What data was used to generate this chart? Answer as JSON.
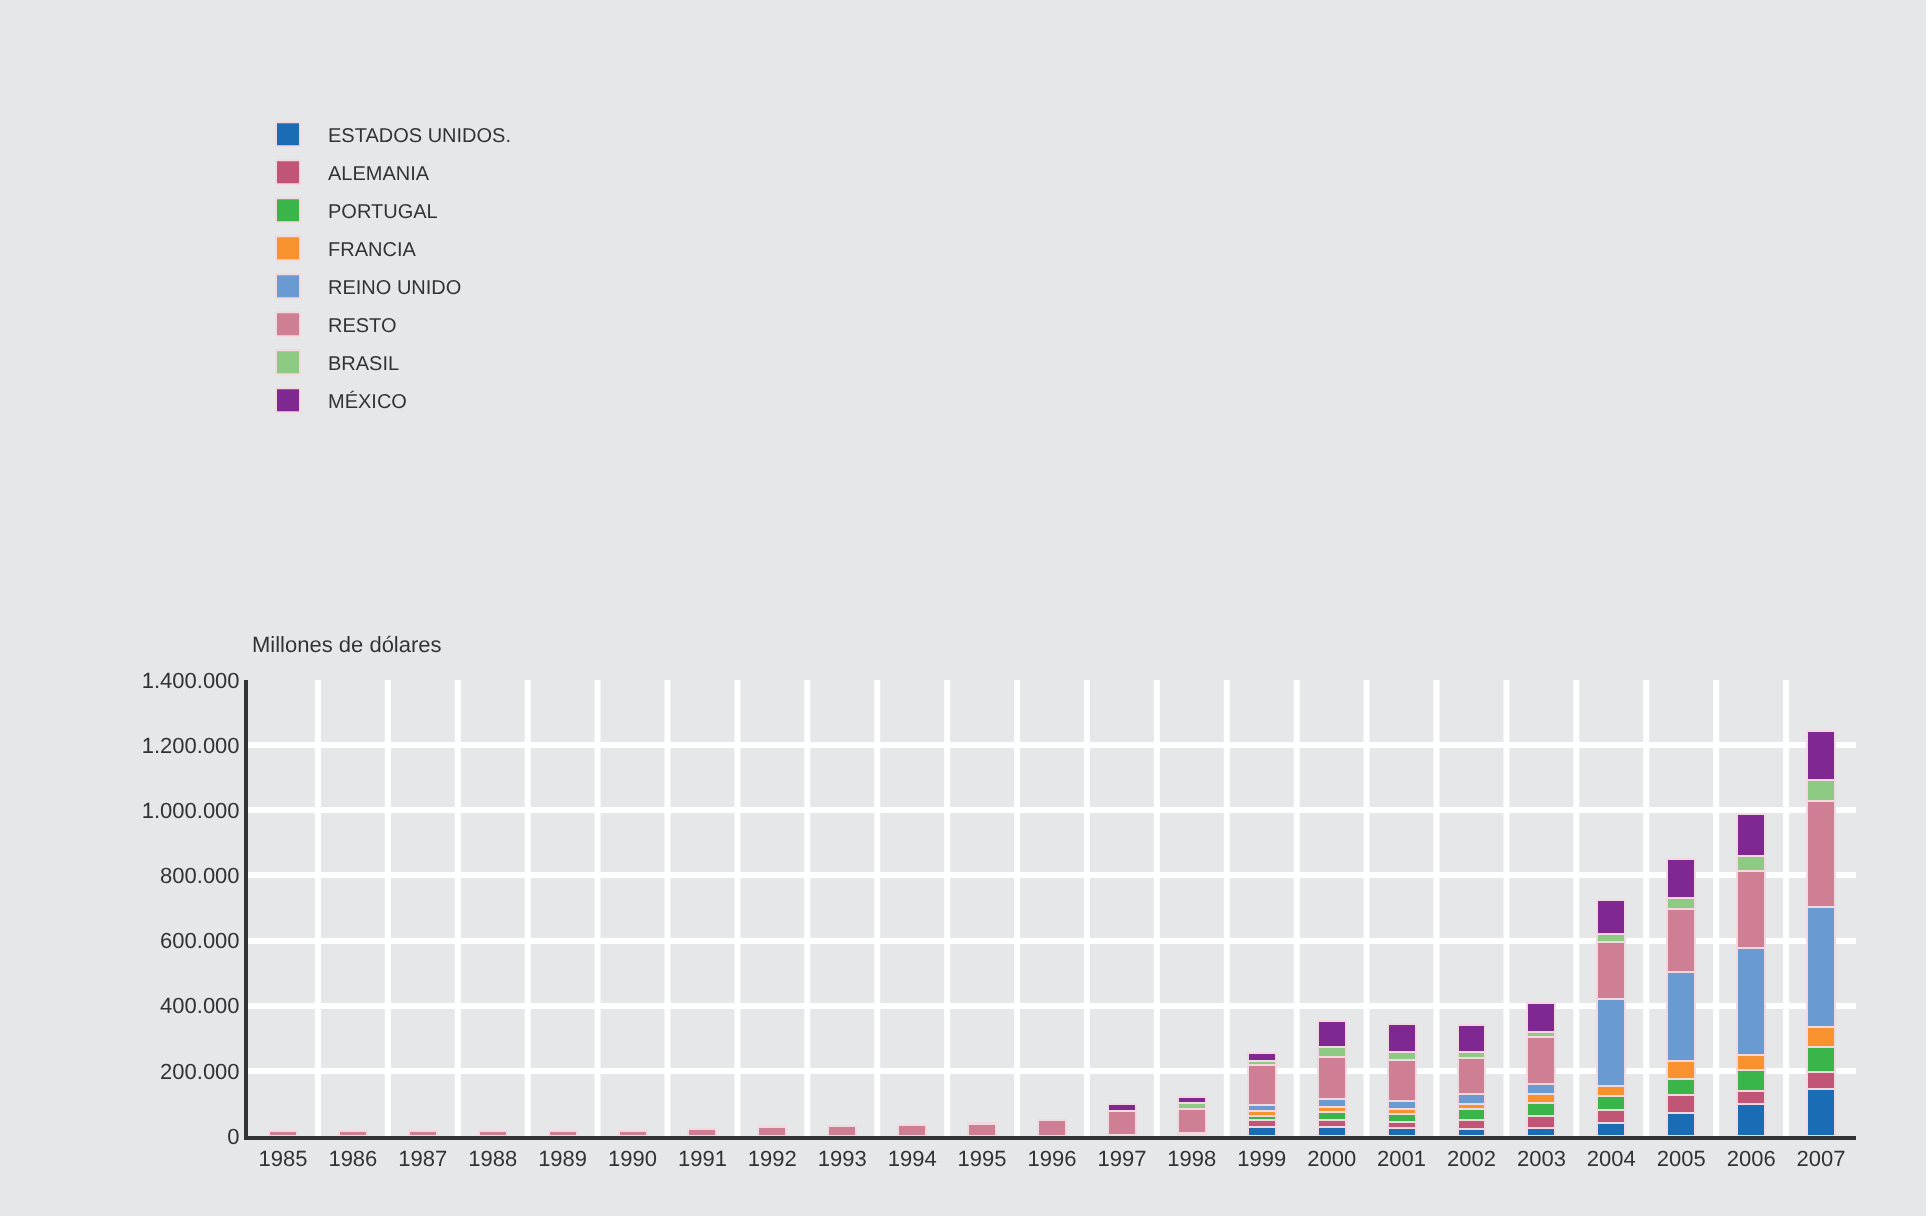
{
  "chart_data": {
    "type": "bar",
    "stacked": true,
    "ylabel": "Millones de dólares",
    "categories": [
      "1985",
      "1986",
      "1987",
      "1988",
      "1989",
      "1990",
      "1991",
      "1992",
      "1993",
      "1994",
      "1995",
      "1996",
      "1997",
      "1998",
      "1999",
      "2000",
      "2001",
      "2002",
      "2003",
      "2004",
      "2005",
      "2006",
      "2007"
    ],
    "series": [
      {
        "name": "ESTADOS UNIDOS.",
        "color": "#1a6db5",
        "values": [
          null,
          null,
          null,
          null,
          null,
          null,
          null,
          null,
          null,
          null,
          null,
          null,
          null,
          null,
          29000,
          29000,
          24000,
          20000,
          24000,
          39000,
          70000,
          98000,
          143000
        ]
      },
      {
        "name": "ALEMANIA",
        "color": "#c05575",
        "values": [
          null,
          null,
          null,
          null,
          null,
          null,
          null,
          null,
          null,
          null,
          null,
          null,
          null,
          3000,
          21000,
          20000,
          18000,
          29000,
          36000,
          41000,
          55000,
          41000,
          54000
        ]
      },
      {
        "name": "PORTUGAL",
        "color": "#39b54a",
        "values": [
          null,
          null,
          null,
          null,
          null,
          null,
          null,
          null,
          null,
          null,
          null,
          null,
          3000,
          5000,
          10000,
          24000,
          26000,
          33000,
          41000,
          42000,
          50000,
          63000,
          76000
        ]
      },
      {
        "name": "FRANCIA",
        "color": "#f7922e",
        "values": [
          null,
          null,
          null,
          null,
          null,
          null,
          null,
          null,
          null,
          null,
          null,
          null,
          null,
          null,
          18000,
          16000,
          16000,
          16000,
          28000,
          31000,
          54000,
          47000,
          62000
        ]
      },
      {
        "name": "REINO UNIDO",
        "color": "#6a9ad2",
        "values": [
          null,
          null,
          null,
          null,
          null,
          null,
          null,
          null,
          null,
          null,
          null,
          null,
          null,
          null,
          16000,
          24000,
          24000,
          31000,
          31000,
          267000,
          276000,
          327000,
          369000
        ]
      },
      {
        "name": "RESTO",
        "color": "#cf7f94",
        "values": [
          15000,
          15000,
          16000,
          15000,
          15000,
          16000,
          20000,
          29000,
          32000,
          33000,
          36000,
          50000,
          75000,
          75000,
          124000,
          130000,
          124000,
          111000,
          143000,
          177000,
          193000,
          239000,
          325000
        ]
      },
      {
        "name": "BRASIL",
        "color": "#8dcb85",
        "values": [
          null,
          null,
          null,
          null,
          null,
          null,
          null,
          null,
          null,
          null,
          null,
          null,
          null,
          18000,
          11000,
          29000,
          26000,
          18000,
          16000,
          23000,
          34000,
          46000,
          65000
        ]
      },
      {
        "name": "MÉXICO",
        "color": "#7f2891",
        "values": [
          null,
          null,
          null,
          null,
          null,
          null,
          null,
          null,
          null,
          null,
          3000,
          null,
          20000,
          18000,
          26000,
          81000,
          86000,
          83000,
          89000,
          104000,
          120000,
          128000,
          150000
        ]
      }
    ],
    "ylim": [
      0,
      1400000
    ],
    "yticks": [
      0,
      {
        "value": 200000,
        "label": "200.000"
      },
      {
        "value": 400000,
        "label": "400.000"
      },
      {
        "value": 600000,
        "label": "600.000"
      },
      {
        "value": 800000,
        "label": "800.000"
      },
      {
        "value": 1000000,
        "label": "1.000.000"
      },
      {
        "value": 1200000,
        "label": "1.200.000"
      },
      {
        "value": 1400000,
        "label": "1.400.000"
      }
    ],
    "grid": true,
    "legend": "top left"
  }
}
